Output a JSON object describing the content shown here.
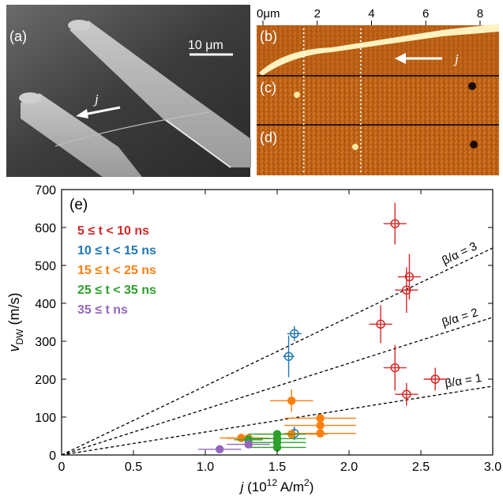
{
  "panels": {
    "a": {
      "label": "(a)",
      "scalebar": "10 μm",
      "current_label": "j"
    },
    "b": {
      "label": "(b)",
      "current_label": "j",
      "top_axis": {
        "ticks": [
          {
            "v": 0,
            "label": "0μm"
          },
          {
            "v": 2,
            "label": "2"
          },
          {
            "v": 4,
            "label": "4"
          },
          {
            "v": 6,
            "label": "6"
          },
          {
            "v": 8,
            "label": "8"
          }
        ],
        "range": [
          0,
          8.7
        ]
      },
      "dashed_positions_um": [
        1.5,
        3.6
      ]
    },
    "c": {
      "label": "(c)"
    },
    "d": {
      "label": "(d)"
    }
  },
  "chart_data": {
    "type": "scatter",
    "panel_label": "(e)",
    "xlabel_main": "j",
    "xlabel_rest": " (10",
    "xlabel_sup": "12",
    "xlabel_tail": " A/m",
    "xlabel_sup2": "2",
    "xlabel_close": ")",
    "ylabel_main": "v",
    "ylabel_sub": "DW",
    "ylabel_rest": " (m/s)",
    "xlim": [
      0,
      3.0
    ],
    "ylim": [
      0,
      700
    ],
    "xticks": [
      0,
      0.5,
      1.0,
      1.5,
      2.0,
      2.5,
      3.0
    ],
    "xticklabels": [
      "0",
      "0.5",
      "1.0",
      "1.5",
      "2.0",
      "2.5",
      "3.0"
    ],
    "yticks": [
      0,
      100,
      200,
      300,
      400,
      500,
      600,
      700
    ],
    "yticklabels": [
      "0",
      "100",
      "200",
      "300",
      "400",
      "500",
      "600",
      "700"
    ],
    "grid": false,
    "legend_position": "top-left",
    "series": [
      {
        "name": "5 ≤ t < 10 ns",
        "color": "#d62728",
        "marker": "open-circle",
        "points": [
          {
            "x": 2.32,
            "y": 610,
            "xerr": 0.08,
            "yerr": 55
          },
          {
            "x": 2.42,
            "y": 470,
            "xerr": 0.08,
            "yerr": 60
          },
          {
            "x": 2.4,
            "y": 435,
            "xerr": 0.08,
            "yerr": 60
          },
          {
            "x": 2.22,
            "y": 345,
            "xerr": 0.08,
            "yerr": 50
          },
          {
            "x": 2.32,
            "y": 230,
            "xerr": 0.08,
            "yerr": 60
          },
          {
            "x": 2.4,
            "y": 160,
            "xerr": 0.08,
            "yerr": 30
          },
          {
            "x": 2.6,
            "y": 200,
            "xerr": 0.08,
            "yerr": 30
          }
        ]
      },
      {
        "name": "10 ≤ t < 15 ns",
        "color": "#1f77b4",
        "marker": "open-circle",
        "points": [
          {
            "x": 1.62,
            "y": 320,
            "xerr": 0.05,
            "yerr": 20
          },
          {
            "x": 1.58,
            "y": 260,
            "xerr": 0.04,
            "yerr": 55
          },
          {
            "x": 1.62,
            "y": 57,
            "xerr": 0.06,
            "yerr": 18
          }
        ]
      },
      {
        "name": "15 ≤ t < 25 ns",
        "color": "#ff7f0e",
        "marker": "filled-circle",
        "points": [
          {
            "x": 1.6,
            "y": 143,
            "xerr": 0.15,
            "yerr": 30
          },
          {
            "x": 1.8,
            "y": 97,
            "xerr": 0.25,
            "yerr": 10
          },
          {
            "x": 1.8,
            "y": 78,
            "xerr": 0.25,
            "yerr": 10
          },
          {
            "x": 1.8,
            "y": 57,
            "xerr": 0.25,
            "yerr": 10
          },
          {
            "x": 1.6,
            "y": 55,
            "xerr": 0.25,
            "yerr": 10
          },
          {
            "x": 1.25,
            "y": 45,
            "xerr": 0.15,
            "yerr": 8
          },
          {
            "x": 1.3,
            "y": 44,
            "xerr": 0.15,
            "yerr": 8
          }
        ]
      },
      {
        "name": "25 ≤ t < 35 ns",
        "color": "#2ca02c",
        "marker": "filled-circle",
        "points": [
          {
            "x": 1.5,
            "y": 55,
            "xerr": 0.2,
            "yerr": 8
          },
          {
            "x": 1.5,
            "y": 43,
            "xerr": 0.2,
            "yerr": 8
          },
          {
            "x": 1.5,
            "y": 33,
            "xerr": 0.2,
            "yerr": 8
          },
          {
            "x": 1.3,
            "y": 40,
            "xerr": 0.1,
            "yerr": 6
          },
          {
            "x": 1.5,
            "y": 20,
            "xerr": 0.2,
            "yerr": 6
          }
        ]
      },
      {
        "name": "35 ≤ t ns",
        "color": "#9467bd",
        "marker": "filled-circle",
        "points": [
          {
            "x": 1.1,
            "y": 15,
            "xerr": 0.15,
            "yerr": 5
          },
          {
            "x": 1.3,
            "y": 28,
            "xerr": 0.15,
            "yerr": 5
          }
        ]
      }
    ],
    "reference_lines": [
      {
        "label": "β/α = 3",
        "slope": 182
      },
      {
        "label": "β/α = 2",
        "slope": 121
      },
      {
        "label": "β/α = 1",
        "slope": 60.5
      }
    ]
  }
}
